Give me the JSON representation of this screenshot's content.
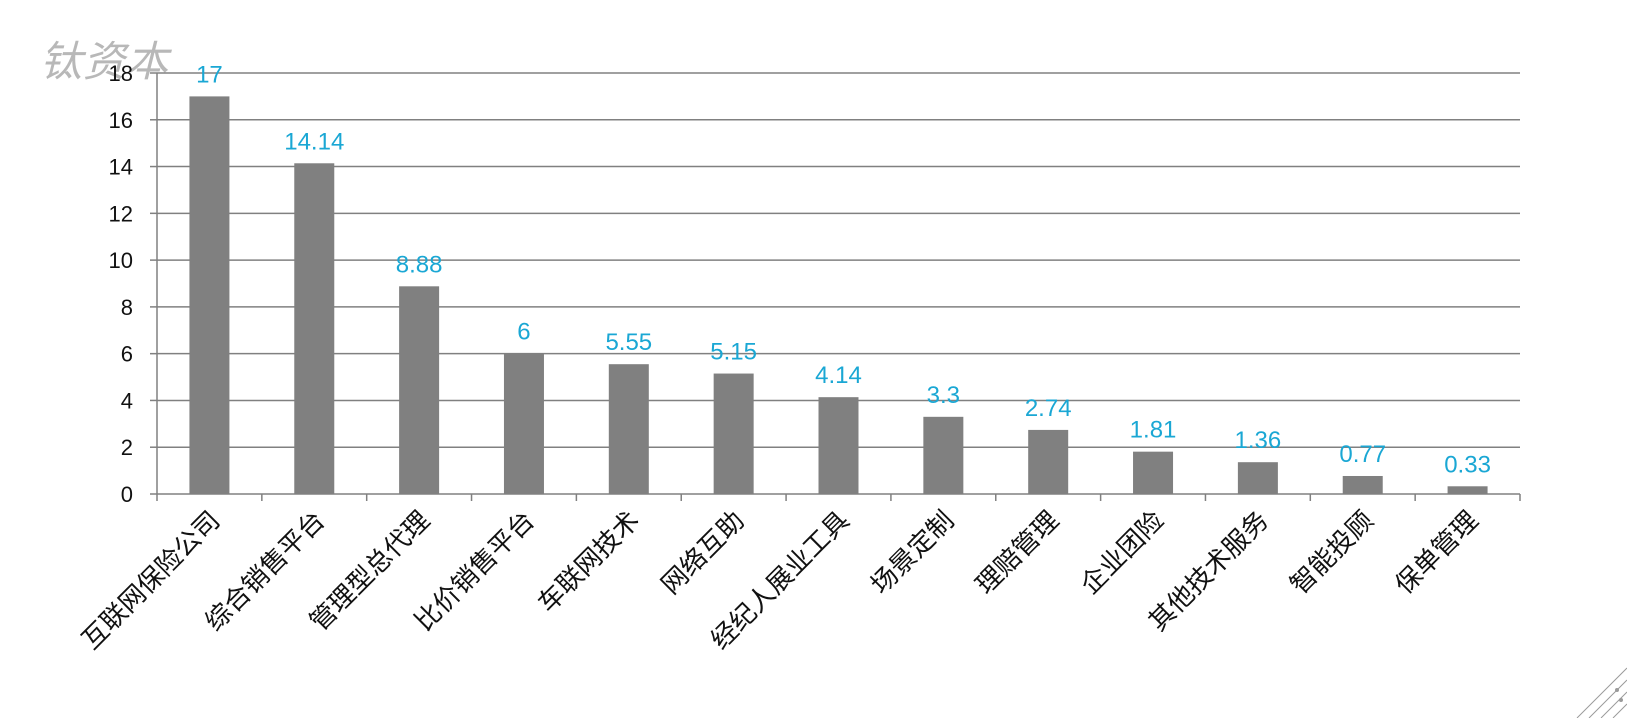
{
  "watermark": "钛资本",
  "colors": {
    "bar": "#808080",
    "label": "#1aa7d4",
    "grid": "#808080",
    "axis": "#808080"
  },
  "chart_data": {
    "type": "bar",
    "title": "",
    "xlabel": "",
    "ylabel": "",
    "categories": [
      "互联网保险公司",
      "综合销售平台",
      "管理型总代理",
      "比价销售平台",
      "车联网技术",
      "网络互助",
      "经纪人展业工具",
      "场景定制",
      "理赔管理",
      "企业团险",
      "其他技术服务",
      "智能投顾",
      "保单管理"
    ],
    "values": [
      17,
      14.14,
      8.88,
      6,
      5.55,
      5.15,
      4.14,
      3.3,
      2.74,
      1.81,
      1.36,
      0.77,
      0.33
    ],
    "data_labels": [
      "17",
      "14.14",
      "8.88",
      "6",
      "5.55",
      "5.15",
      "4.14",
      "3.3",
      "2.74",
      "1.81",
      "1.36",
      "0.77",
      "0.33"
    ],
    "ylim": [
      0,
      18
    ],
    "yticks": [
      0,
      2,
      4,
      6,
      8,
      10,
      12,
      14,
      16,
      18
    ],
    "grid": true,
    "legend": "none"
  }
}
